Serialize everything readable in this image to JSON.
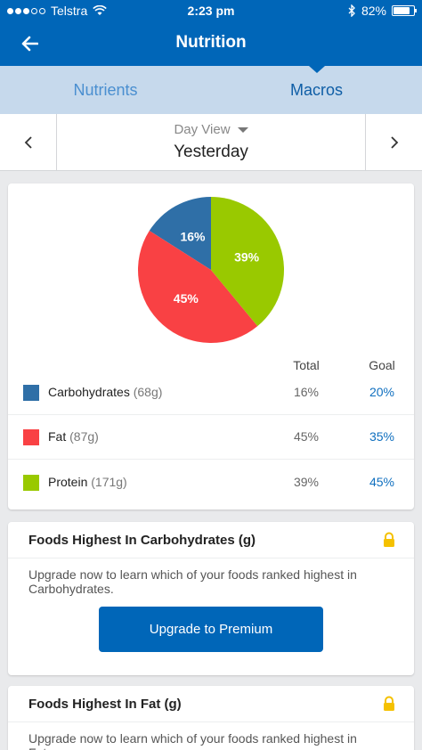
{
  "status_bar": {
    "carrier": "Telstra",
    "time": "2:23 pm",
    "battery": "82%",
    "battery_level": 0.82
  },
  "header": {
    "title": "Nutrition"
  },
  "tabs": [
    {
      "label": "Nutrients",
      "active": false
    },
    {
      "label": "Macros",
      "active": true
    }
  ],
  "day_nav": {
    "view_label": "Day View",
    "day_label": "Yesterday"
  },
  "macros": {
    "total_header": "Total",
    "goal_header": "Goal",
    "rows": [
      {
        "name": "Carbohydrates",
        "grams": "(68g)",
        "total": "16%",
        "goal": "20%",
        "color": "#2f6fa7"
      },
      {
        "name": "Fat",
        "grams": "(87g)",
        "total": "45%",
        "goal": "35%",
        "color": "#f94144"
      },
      {
        "name": "Protein",
        "grams": "(171g)",
        "total": "39%",
        "goal": "45%",
        "color": "#99c900"
      }
    ]
  },
  "chart_data": {
    "type": "pie",
    "categories": [
      "Carbohydrates",
      "Fat",
      "Protein"
    ],
    "values": [
      16,
      45,
      39
    ],
    "labels": [
      "16%",
      "45%",
      "39%"
    ],
    "colors": [
      "#2f6fa7",
      "#f94144",
      "#99c900"
    ]
  },
  "foods_cards": [
    {
      "title": "Foods Highest In Carbohydrates (g)",
      "text": "Upgrade now to learn which of your foods ranked highest in Carbohydrates.",
      "button": "Upgrade to Premium"
    },
    {
      "title": "Foods Highest In Fat (g)",
      "text": "Upgrade now to learn which of your foods ranked highest in Fat."
    }
  ],
  "icons": {
    "back": "arrow-left-icon",
    "prev": "chevron-left-icon",
    "next": "chevron-right-icon",
    "lock": "lock-icon",
    "lock_color": "#f5c100"
  }
}
